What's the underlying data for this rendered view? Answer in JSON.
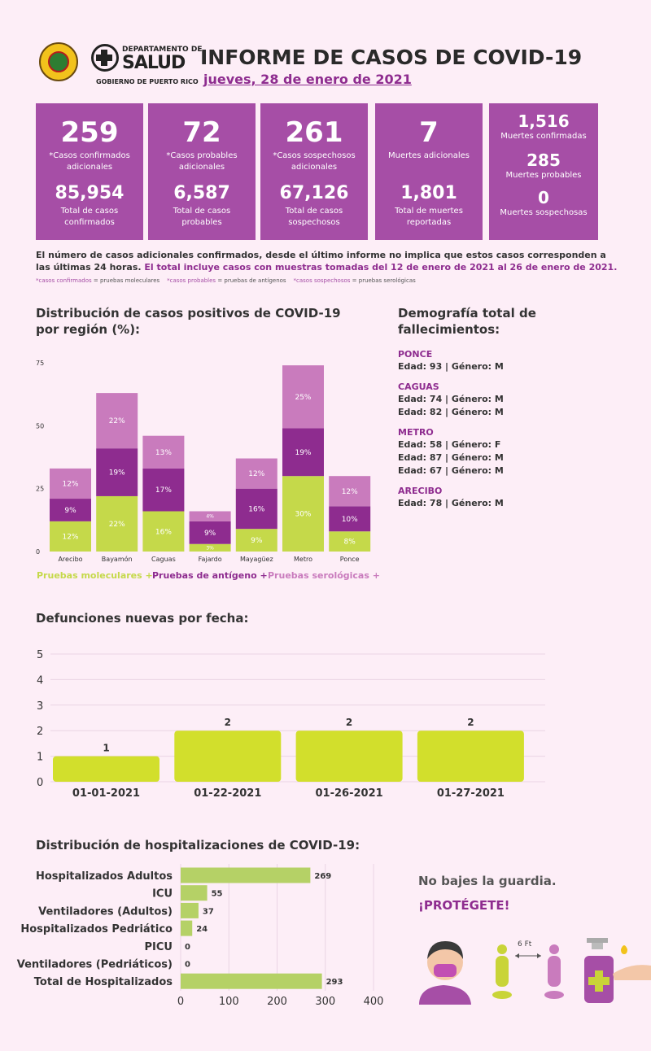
{
  "header": {
    "dept_line1": "DEPARTAMENTO DE",
    "dept_line2": "SALUD",
    "dept_line3": "GOBIERNO DE PUERTO RICO",
    "title": "INFORME DE CASOS DE COVID-19",
    "date": "jueves, 28 de enero de 2021"
  },
  "colors": {
    "card": "#a64ea6",
    "moleculares": "#c5d94a",
    "antigeno": "#8e2c8f",
    "serologicas": "#c97bbd",
    "deaths_bar": "#d2df2c",
    "hosp_bar": "#b5d166"
  },
  "cards": [
    {
      "big": "259",
      "big_label": "*Casos confirmados adicionales",
      "total": "85,954",
      "total_label": "Total de casos confirmados"
    },
    {
      "big": "72",
      "big_label": "*Casos probables adicionales",
      "total": "6,587",
      "total_label": "Total de casos probables"
    },
    {
      "big": "261",
      "big_label": "*Casos sospechosos adicionales",
      "total": "67,126",
      "total_label": "Total de casos sospechosos"
    },
    {
      "big": "7",
      "big_label": "Muertes adicionales",
      "total": "1,801",
      "total_label": "Total de muertes reportadas"
    }
  ],
  "deaths_card": {
    "confirmed": "1,516",
    "confirmed_label": "Muertes confirmadas",
    "probable": "285",
    "probable_label": "Muertes probables",
    "suspected": "0",
    "suspected_label": "Muertes sospechosas"
  },
  "note": {
    "part1": "El número de casos adicionales confirmados, desde el último informe no implica que estos casos corresponden a las últimas 24 horas.",
    "part2": "El total incluye casos con muestras tomadas del 12 de enero de 2021 al 26 de enero de 2021.",
    "legend_a": "*casos confirmados",
    "legend_a_text": "= pruebas moleculares",
    "legend_b": "*casos probables",
    "legend_b_text": "= pruebas de antígenos",
    "legend_c": "*casos sospechosos",
    "legend_c_text": "= pruebas serológicas"
  },
  "region_section": {
    "title_line1": "Distribución de casos positivos de COVID-19",
    "title_line2": "por región (%):"
  },
  "demography": {
    "title_line1": "Demografía total de",
    "title_line2": "fallecimientos:",
    "regions": [
      {
        "name": "PONCE",
        "lines": [
          "Edad: 93 | Género: M"
        ]
      },
      {
        "name": "CAGUAS",
        "lines": [
          "Edad: 74 | Género: M",
          "Edad: 82 | Género: M"
        ]
      },
      {
        "name": "METRO",
        "lines": [
          "Edad: 58 | Género: F",
          "Edad: 87 | Género: M",
          "Edad: 67 | Género: M"
        ]
      },
      {
        "name": "ARECIBO",
        "lines": [
          "Edad: 78 | Género: M"
        ]
      }
    ]
  },
  "deaths_section": {
    "title": "Defunciones nuevas por fecha:"
  },
  "hosp_section": {
    "title": "Distribución de hospitalizaciones de COVID-19:"
  },
  "slogan": {
    "line1": "No bajes la guardia.",
    "line2": "¡PROTÉGETE!",
    "distance": "6 Ft"
  },
  "chart_data": [
    {
      "type": "bar",
      "stacked": true,
      "categories": [
        "Arecibo",
        "Bayamón",
        "Caguas",
        "Fajardo",
        "Mayagüez",
        "Metro",
        "Ponce"
      ],
      "series": [
        {
          "name": "Pruebas moleculares +",
          "values": [
            12,
            22,
            16,
            3,
            9,
            30,
            8
          ],
          "labels": [
            "12%",
            "22%",
            "16%",
            "3%",
            "9%",
            "30%",
            "8%"
          ]
        },
        {
          "name": "Pruebas de antígeno +",
          "values": [
            9,
            19,
            17,
            9,
            16,
            19,
            10
          ],
          "labels": [
            "9%",
            "19%",
            "17%",
            "9%",
            "16%",
            "19%",
            "10%"
          ]
        },
        {
          "name": "Pruebas serológicas +",
          "values": [
            12,
            22,
            13,
            4,
            12,
            25,
            12
          ],
          "labels": [
            "12%",
            "22%",
            "13%",
            "4%",
            "12%",
            "25%",
            "12%"
          ]
        }
      ],
      "yticks": [
        "0",
        "25",
        "50",
        "75"
      ],
      "ylim": [
        0,
        75
      ]
    },
    {
      "type": "bar",
      "categories": [
        "01-01-2021",
        "01-22-2021",
        "01-26-2021",
        "01-27-2021"
      ],
      "values": [
        1,
        2,
        2,
        2
      ],
      "labels": [
        "1",
        "2",
        "2",
        "2"
      ],
      "yticks": [
        "0",
        "1",
        "2",
        "3",
        "4",
        "5"
      ],
      "ylim": [
        0,
        5
      ]
    },
    {
      "type": "bar",
      "orientation": "horizontal",
      "categories": [
        "Hospitalizados Adultos",
        "ICU",
        "Ventiladores (Adultos)",
        "Hospitalizados Pedriático",
        "PICU",
        "Ventiladores (Pedriáticos)",
        "Total de Hospitalizados"
      ],
      "values": [
        269,
        55,
        37,
        24,
        0,
        0,
        293
      ],
      "labels": [
        "269",
        "55",
        "37",
        "24",
        "0",
        "0",
        "293"
      ],
      "xticks": [
        "0",
        "100",
        "200",
        "300",
        "400"
      ],
      "xlim": [
        0,
        400
      ]
    }
  ]
}
